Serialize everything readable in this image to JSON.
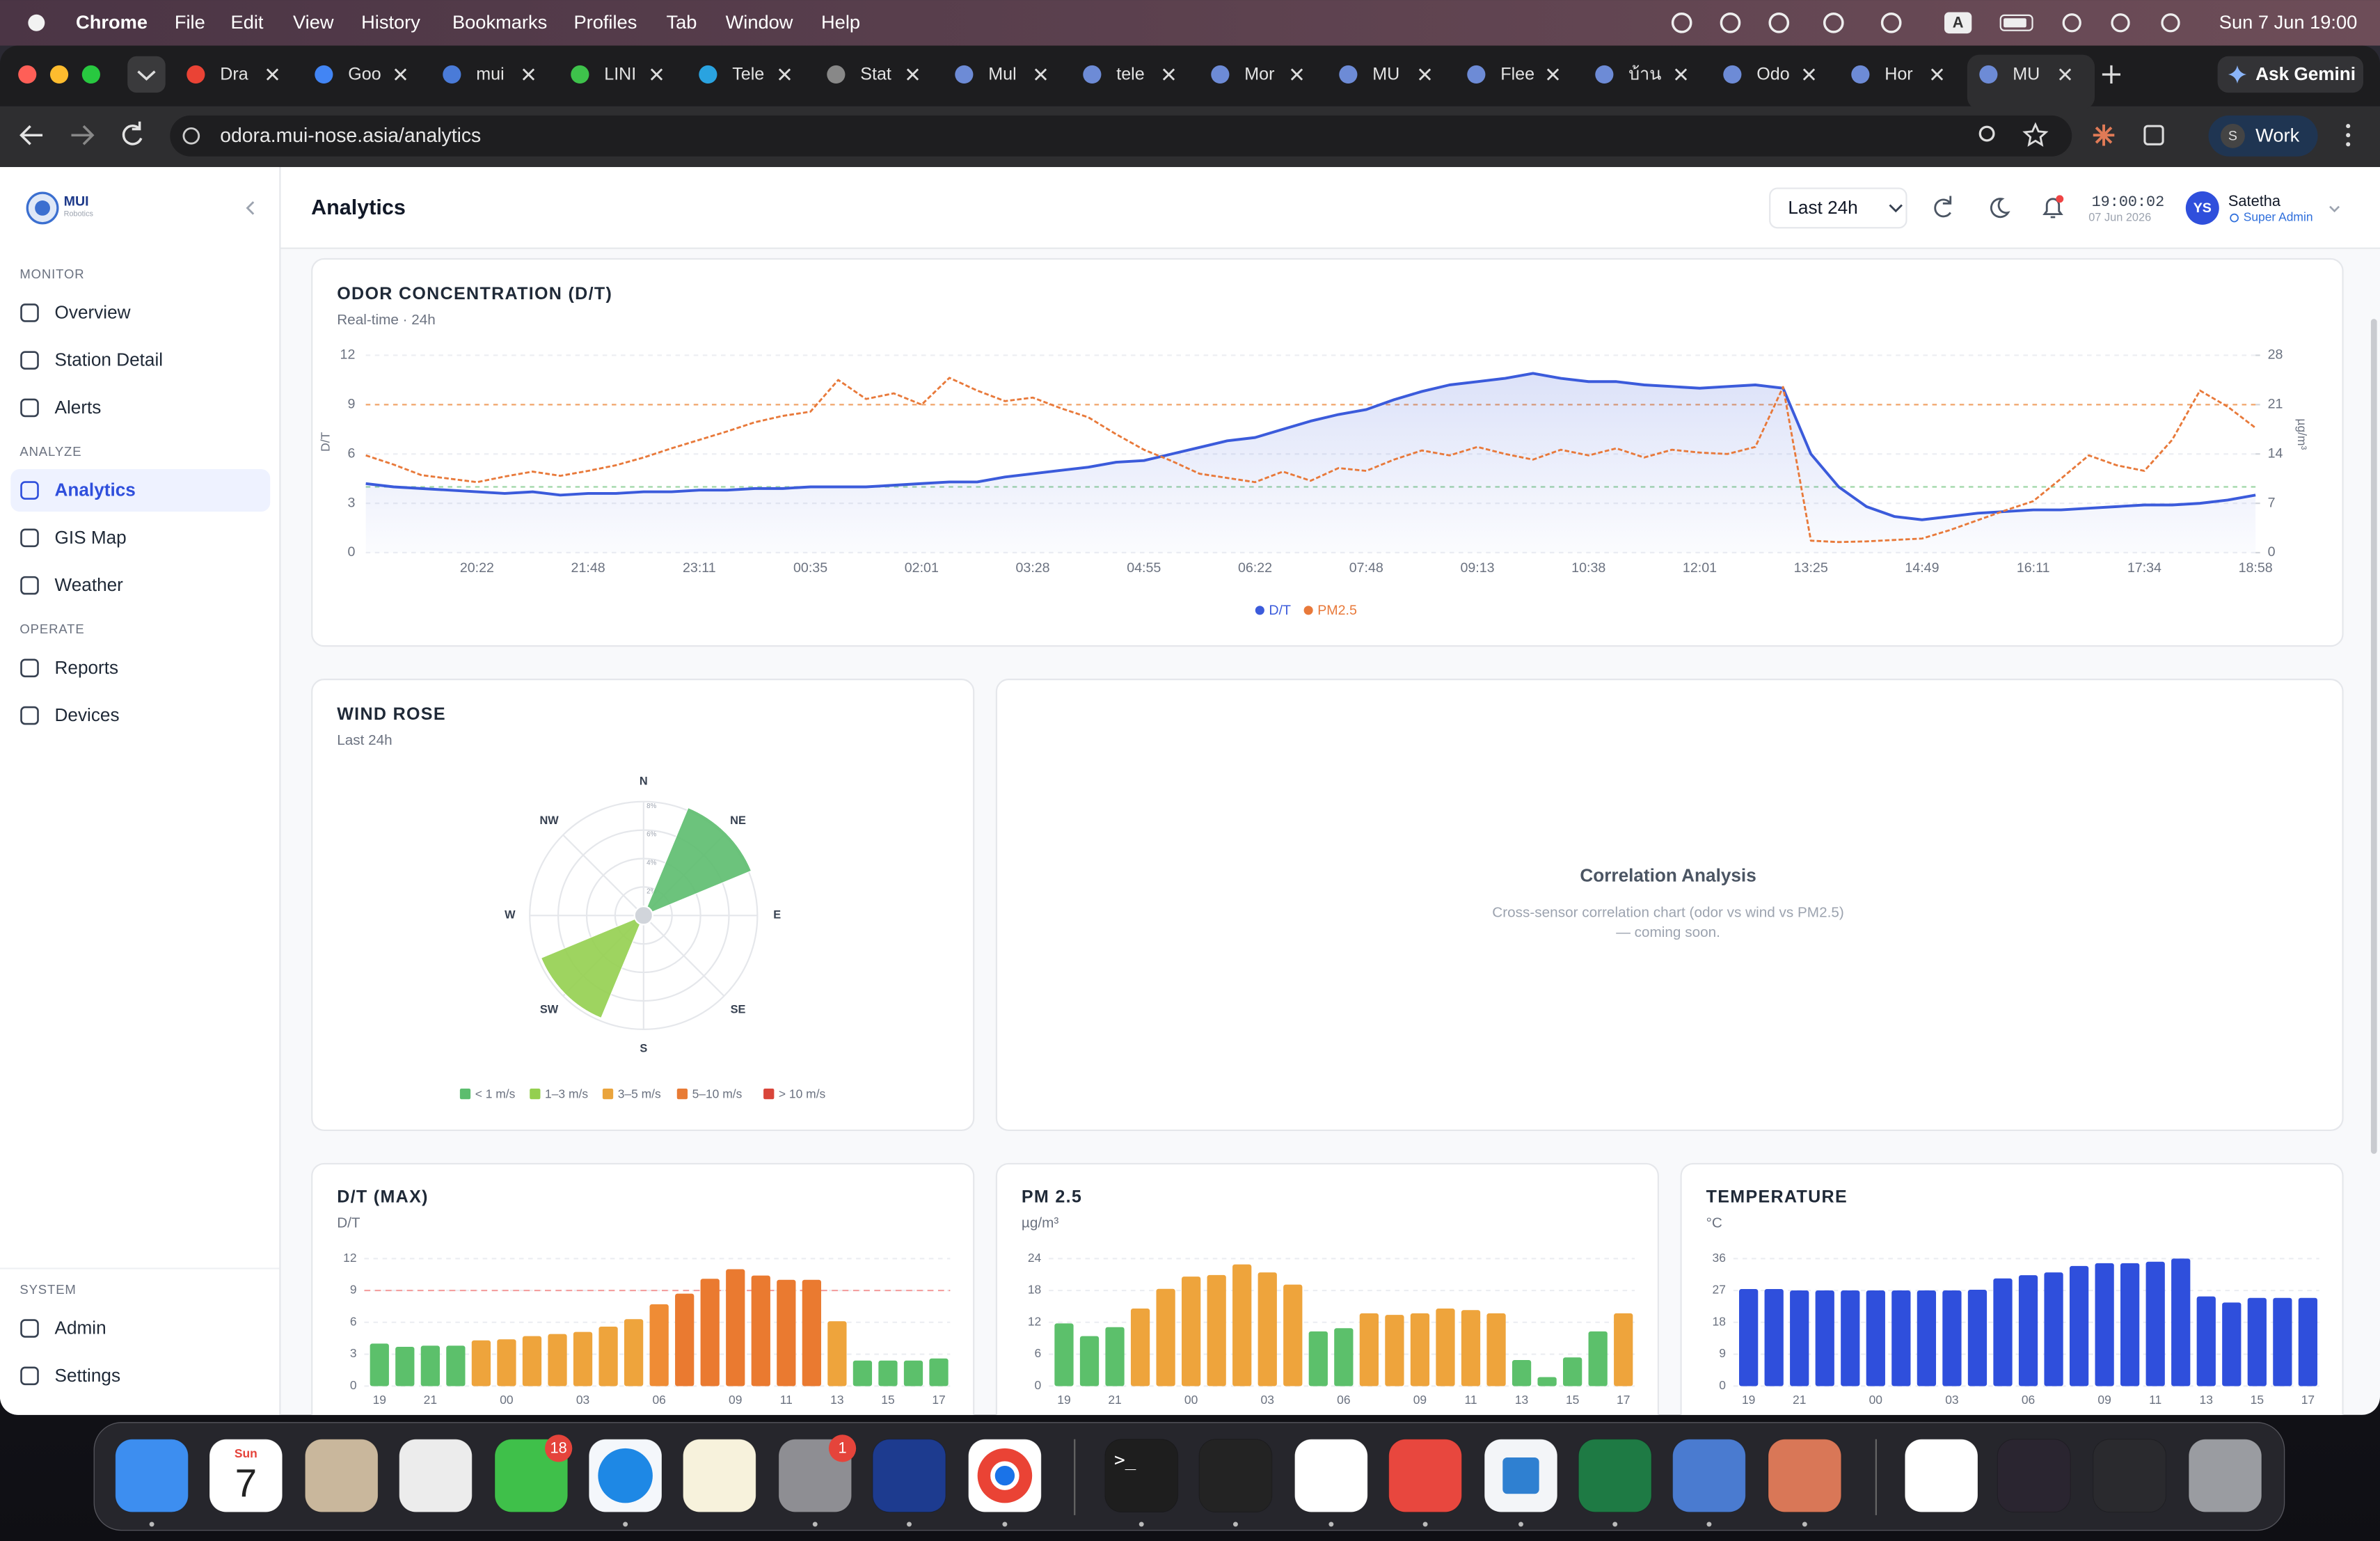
{
  "menubar": {
    "app": "Chrome",
    "menus": [
      "File",
      "Edit",
      "View",
      "History",
      "Bookmarks",
      "Profiles",
      "Tab",
      "Window",
      "Help"
    ],
    "input_source": "A",
    "clock": "Sun 7 Jun  19:00"
  },
  "browser": {
    "tabs": [
      "Dra",
      "Goo",
      "mui",
      "LINI",
      "Tele",
      "Stat",
      "Mul",
      "tele",
      "Mor",
      "MU",
      "Flee",
      "บ้าน",
      "Odo",
      "Hor",
      "MU"
    ],
    "gemini": "Ask Gemini",
    "url": "odora.mui-nose.asia/analytics",
    "profile_initial": "S",
    "profile": "Work"
  },
  "sidebar": {
    "brand": "MUI",
    "brand_sub": "Robotics",
    "sections": [
      {
        "title": "MONITOR",
        "items": [
          {
            "label": "Overview"
          },
          {
            "label": "Station Detail"
          },
          {
            "label": "Alerts"
          }
        ]
      },
      {
        "title": "ANALYZE",
        "items": [
          {
            "label": "Analytics",
            "active": true
          },
          {
            "label": "GIS Map"
          },
          {
            "label": "Weather"
          }
        ]
      },
      {
        "title": "OPERATE",
        "items": [
          {
            "label": "Reports"
          },
          {
            "label": "Devices"
          }
        ]
      },
      {
        "title": "SYSTEM",
        "items": [
          {
            "label": "Admin"
          },
          {
            "label": "Settings"
          }
        ]
      }
    ]
  },
  "header": {
    "title": "Analytics",
    "range": "Last 24h",
    "time": "19:00:02",
    "date": "07 Jun 2026",
    "avatar": "YS",
    "user": "Satetha",
    "role": "Super Admin",
    "notification": true
  },
  "chart_data": [
    {
      "type": "line",
      "title": "ODOR CONCENTRATION (D/T)",
      "subtitle": "Real-time · 24h",
      "ylabel": "D/T",
      "y2label": "µg/m³",
      "categories": [
        null,
        null,
        null,
        null,
        "20:22",
        null,
        null,
        null,
        "21:48",
        null,
        null,
        null,
        "23:11",
        null,
        null,
        null,
        "00:35",
        null,
        null,
        null,
        "02:01",
        null,
        null,
        null,
        "03:28",
        null,
        null,
        null,
        "04:55",
        null,
        null,
        null,
        "06:22",
        null,
        null,
        null,
        "07:48",
        null,
        null,
        null,
        "09:13",
        null,
        null,
        null,
        "10:38",
        null,
        null,
        null,
        "12:01",
        null,
        null,
        null,
        "13:25",
        null,
        null,
        null,
        "14:49",
        null,
        null,
        null,
        "16:11",
        null,
        null,
        null,
        "17:34",
        null,
        null,
        null,
        "18:58"
      ],
      "ylim": [
        0,
        12
      ],
      "yticks": [
        0,
        3,
        6,
        9,
        12
      ],
      "y2lim": [
        0,
        28
      ],
      "y2ticks": [
        0,
        7,
        14,
        21,
        28
      ],
      "grid": true,
      "legend": "bottom",
      "thresholds": [
        {
          "value": 9,
          "color": "#f2a66b"
        },
        {
          "value": 4,
          "color": "#9fd6a6"
        }
      ],
      "series": [
        {
          "name": "D/T",
          "color": "#3b5bdb",
          "area": true,
          "values": [
            4.2,
            4.0,
            3.9,
            3.8,
            3.7,
            3.6,
            3.7,
            3.5,
            3.6,
            3.6,
            3.7,
            3.7,
            3.8,
            3.8,
            3.9,
            3.9,
            4.0,
            4.0,
            4.0,
            4.1,
            4.2,
            4.3,
            4.3,
            4.6,
            4.8,
            5.0,
            5.2,
            5.5,
            5.6,
            6.0,
            6.4,
            6.8,
            7.0,
            7.5,
            8.0,
            8.4,
            8.7,
            9.3,
            9.8,
            10.2,
            10.4,
            10.6,
            10.9,
            10.6,
            10.4,
            10.4,
            10.2,
            10.1,
            10.0,
            10.1,
            10.2,
            10.0,
            6.0,
            4.0,
            2.8,
            2.2,
            2.0,
            2.2,
            2.4,
            2.5,
            2.6,
            2.6,
            2.7,
            2.8,
            2.9,
            2.9,
            3.0,
            3.2,
            3.5
          ]
        },
        {
          "name": "PM2.5",
          "color": "#e8793a",
          "axis": "y2",
          "dashed": true,
          "values": [
            13.8,
            12.5,
            11.0,
            10.5,
            10.0,
            10.8,
            11.5,
            10.9,
            11.6,
            12.4,
            13.5,
            14.8,
            16.0,
            17.2,
            18.5,
            19.4,
            20.0,
            24.5,
            21.8,
            22.6,
            21.0,
            24.8,
            23.0,
            21.5,
            22.0,
            20.5,
            19.2,
            16.8,
            14.6,
            13.0,
            11.2,
            10.6,
            10.0,
            11.5,
            10.2,
            12.0,
            11.6,
            13.2,
            14.5,
            13.8,
            15.0,
            14.0,
            13.2,
            14.6,
            13.8,
            14.8,
            13.5,
            14.6,
            14.2,
            14.0,
            15.0,
            23.5,
            1.7,
            1.5,
            1.6,
            1.8,
            2.0,
            3.2,
            4.6,
            6.0,
            7.3,
            10.5,
            13.8,
            12.4,
            11.6,
            16.0,
            23.0,
            20.7,
            17.7
          ]
        }
      ]
    },
    {
      "type": "windrose",
      "title": "WIND ROSE",
      "subtitle": "Last 24h",
      "categories": [
        "N",
        "NE",
        "E",
        "SE",
        "S",
        "SW",
        "W",
        "NW"
      ],
      "rlim": [
        0,
        8
      ],
      "rticks": [
        {
          "value": 2,
          "label": "2%"
        },
        {
          "value": 4,
          "label": "4%"
        },
        {
          "value": 6,
          "label": "6%"
        },
        {
          "value": 8,
          "label": "8%"
        }
      ],
      "legend": "bottom",
      "series": [
        {
          "name": "< 1 m/s",
          "color": "#5cbd6e",
          "values": [
            0,
            8.2,
            0,
            0,
            0,
            0,
            0,
            0
          ]
        },
        {
          "name": "1–3 m/s",
          "color": "#94cf4f",
          "values": [
            0,
            0,
            0,
            0,
            0,
            7.8,
            0,
            0
          ]
        },
        {
          "name": "3–5 m/s",
          "color": "#eaa43c",
          "values": [
            0,
            0,
            0,
            0,
            0,
            0,
            0,
            0
          ]
        },
        {
          "name": "5–10 m/s",
          "color": "#e87b35",
          "values": [
            0,
            0,
            0,
            0,
            0,
            0,
            0,
            0
          ]
        },
        {
          "name": "> 10 m/s",
          "color": "#d9453a",
          "values": [
            0,
            0,
            0,
            0,
            0,
            0,
            0,
            0
          ]
        }
      ]
    },
    {
      "type": "bar",
      "title": "D/T (MAX)",
      "subtitle": "D/T",
      "ylim": [
        0,
        12
      ],
      "yticks": [
        0,
        3,
        6,
        9,
        12
      ],
      "grid": true,
      "thresholds": [
        {
          "value": 9,
          "color": "#f4a0a0"
        }
      ],
      "categories": [
        "19",
        null,
        "21",
        null,
        null,
        "00",
        null,
        null,
        "03",
        null,
        null,
        "06",
        null,
        null,
        "09",
        null,
        "11",
        null,
        "13",
        null,
        "15",
        null,
        "17"
      ],
      "values": [
        4.0,
        3.7,
        3.8,
        3.8,
        4.3,
        4.4,
        4.7,
        4.9,
        5.1,
        5.6,
        6.3,
        7.7,
        8.7,
        10.1,
        11.0,
        10.4,
        10.0,
        10.0,
        6.1,
        2.4,
        2.4,
        2.4,
        2.6
      ],
      "colors": [
        "#5cc06b",
        "#5cc06b",
        "#5cc06b",
        "#5cc06b",
        "#eea43c",
        "#eea43c",
        "#eea43c",
        "#eea43c",
        "#eea43c",
        "#eea43c",
        "#eea43c",
        "#ef8c35",
        "#ea7a30",
        "#ea7a30",
        "#ea7a30",
        "#ea7a30",
        "#ea7a30",
        "#ea7a30",
        "#eea43c",
        "#5cc06b",
        "#5cc06b",
        "#5cc06b",
        "#5cc06b"
      ]
    },
    {
      "type": "bar",
      "title": "PM 2.5",
      "subtitle": "µg/m³",
      "ylim": [
        0,
        24
      ],
      "yticks": [
        0,
        6,
        12,
        18,
        24
      ],
      "grid": true,
      "categories": [
        "19",
        null,
        "21",
        null,
        null,
        "00",
        null,
        null,
        "03",
        null,
        null,
        "06",
        null,
        null,
        "09",
        null,
        "11",
        null,
        "13",
        null,
        "15",
        null,
        "17"
      ],
      "values": [
        11.8,
        9.4,
        11.1,
        14.6,
        18.3,
        20.6,
        20.9,
        22.9,
        21.4,
        19.1,
        10.3,
        10.9,
        13.7,
        13.4,
        13.7,
        14.6,
        14.3,
        13.7,
        4.9,
        1.7,
        5.4,
        10.3,
        13.7
      ],
      "colors": [
        "#5cc06b",
        "#5cc06b",
        "#5cc06b",
        "#eea43c",
        "#eea43c",
        "#eea43c",
        "#eea43c",
        "#eea43c",
        "#eea43c",
        "#eea43c",
        "#5cc06b",
        "#5cc06b",
        "#eea43c",
        "#eea43c",
        "#eea43c",
        "#eea43c",
        "#eea43c",
        "#eea43c",
        "#5cc06b",
        "#5cc06b",
        "#5cc06b",
        "#5cc06b",
        "#eea43c"
      ]
    },
    {
      "type": "bar",
      "title": "TEMPERATURE",
      "subtitle": "°C",
      "ylim": [
        0,
        36
      ],
      "yticks": [
        0,
        9,
        18,
        27,
        36
      ],
      "grid": true,
      "color": "#2f4fdc",
      "categories": [
        "19",
        null,
        "21",
        null,
        null,
        "00",
        null,
        null,
        "03",
        null,
        null,
        "06",
        null,
        null,
        "09",
        null,
        "11",
        null,
        "13",
        null,
        "15",
        null,
        "17"
      ],
      "values": [
        27.4,
        27.4,
        27,
        27,
        27,
        27,
        27,
        27,
        27,
        27.2,
        30.4,
        31.3,
        32.1,
        33.9,
        34.7,
        34.7,
        35.1,
        36,
        25.3,
        23.6,
        24.9,
        24.9,
        24.9
      ]
    }
  ],
  "placeholder": {
    "title": "Correlation Analysis",
    "lines": [
      "Cross-sensor correlation chart (odor vs wind vs PM2.5)",
      "— coming soon."
    ]
  },
  "dock": {
    "calendar_day": "Sun",
    "calendar_date": "7",
    "terminal": ">_",
    "badges": [
      "18",
      "1"
    ]
  }
}
